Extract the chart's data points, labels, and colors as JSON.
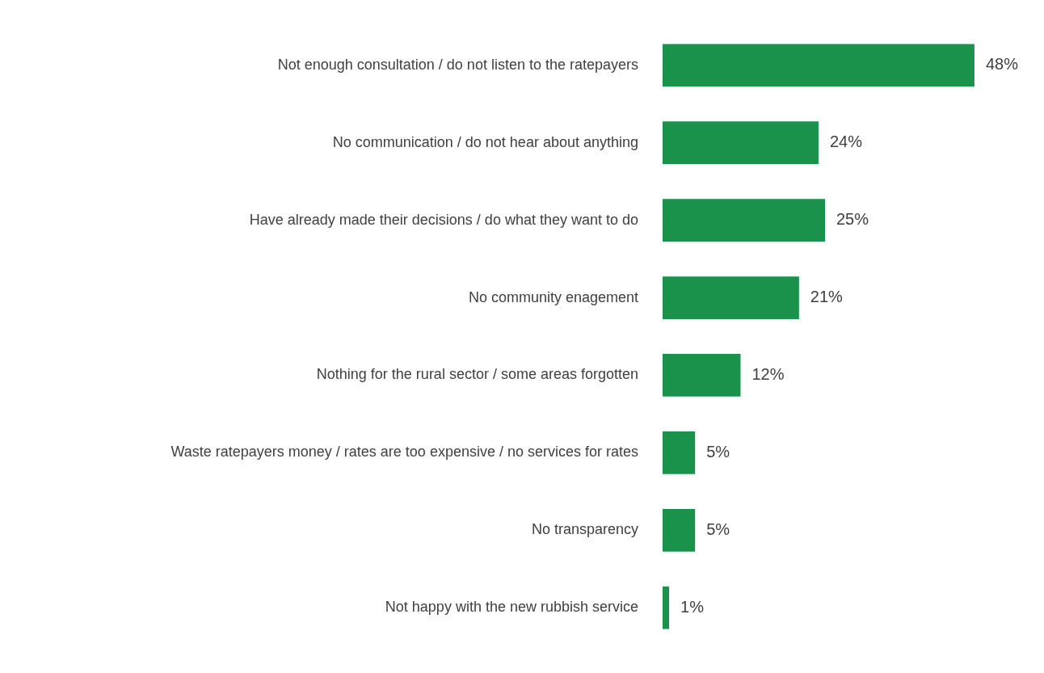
{
  "chart_data": {
    "type": "bar",
    "orientation": "horizontal",
    "categories": [
      "Not enough consultation / do not listen to the ratepayers",
      "No communication / do not hear about anything",
      "Have already made their decisions / do what they want to do",
      "No community enagement",
      "Nothing for the rural sector / some areas forgotten",
      "Waste ratepayers money / rates are too expensive / no services for rates",
      "No transparency",
      "Not happy with the new rubbish service"
    ],
    "values": [
      48,
      24,
      25,
      21,
      12,
      5,
      5,
      1
    ],
    "value_labels": [
      "48%",
      "24%",
      "25%",
      "21%",
      "12%",
      "5%",
      "5%",
      "1%"
    ],
    "color": "#1a924c",
    "legend": false
  }
}
